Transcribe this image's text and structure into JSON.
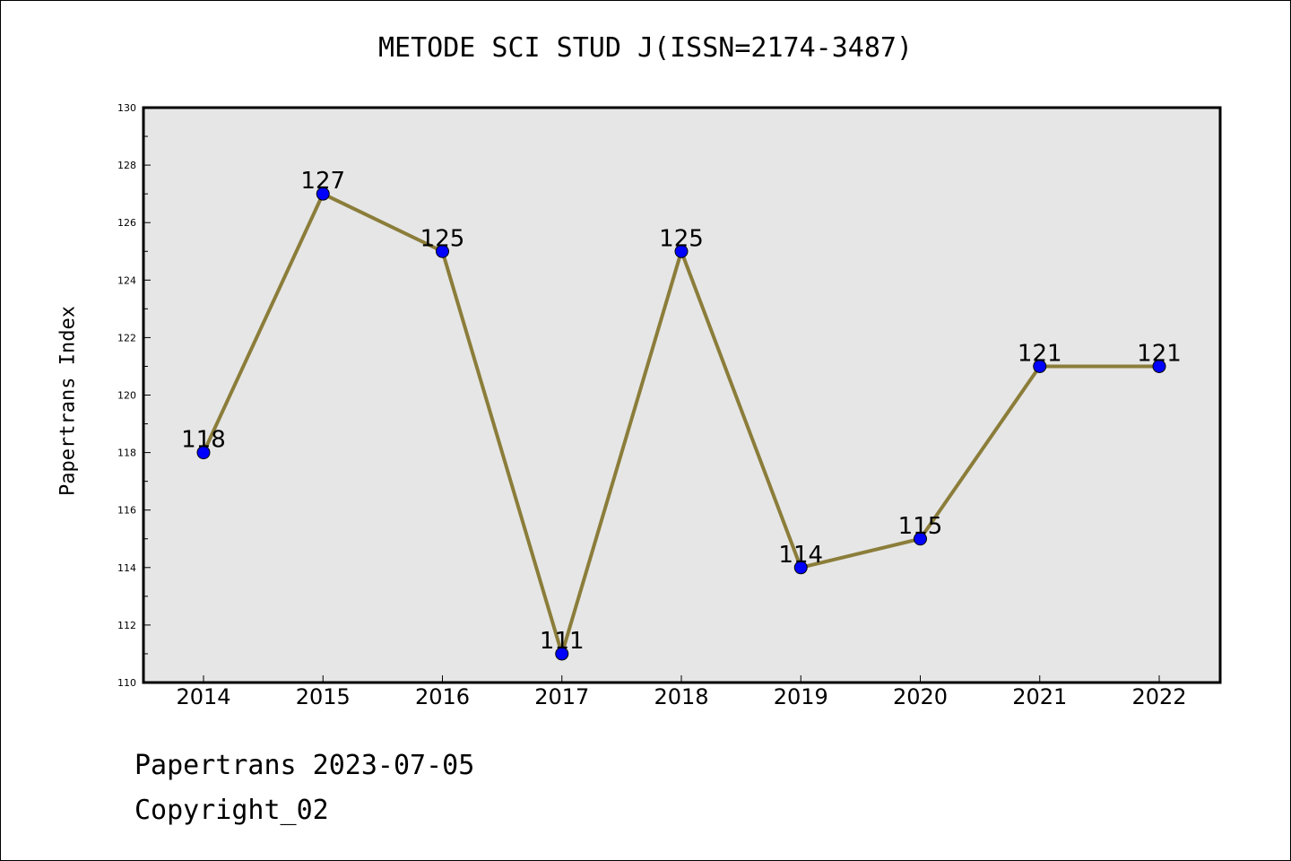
{
  "chart_data": {
    "type": "line",
    "title": "METODE SCI STUD J(ISSN=2174-3487)",
    "xlabel": "",
    "ylabel": "Papertrans Index",
    "categories": [
      "2014",
      "2015",
      "2016",
      "2017",
      "2018",
      "2019",
      "2020",
      "2021",
      "2022"
    ],
    "values": [
      118,
      127,
      125,
      111,
      125,
      114,
      115,
      121,
      121
    ],
    "data_labels": [
      "118",
      "127",
      "125",
      "111",
      "125",
      "114",
      "115",
      "121",
      "121"
    ],
    "ylim": [
      110,
      130
    ],
    "yticks": [
      "110",
      "112",
      "114",
      "116",
      "118",
      "120",
      "122",
      "124",
      "126",
      "128",
      "130"
    ],
    "grid": false,
    "line_color": "#8B7D3A",
    "marker_color": "#0000FF",
    "plot_background": "#E6E6E6"
  },
  "footer": {
    "line1": "Papertrans 2023-07-05",
    "line2": "Copyright_02"
  }
}
